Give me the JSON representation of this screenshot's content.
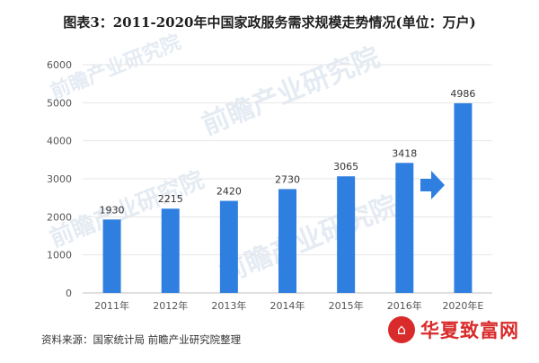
{
  "chart_data": {
    "type": "bar",
    "title": "图表3：2011-2020年中国家政服务需求规模走势情况(单位：万户)",
    "categories": [
      "2011年",
      "2012年",
      "2013年",
      "2014年",
      "2015年",
      "2016年",
      "2020年E"
    ],
    "values": [
      1930,
      2215,
      2420,
      2730,
      3065,
      3418,
      4986
    ],
    "data_labels": [
      "1930",
      "2215",
      "2420",
      "2730",
      "3065",
      "3418",
      "4986"
    ],
    "ylim": [
      0,
      6000
    ],
    "yticks": [
      "0",
      "1000",
      "2000",
      "3000",
      "4000",
      "5000",
      "6000"
    ],
    "grid": true,
    "bar_color": "#2f7fe0",
    "arrow_color": "#2f7fe0"
  },
  "source": "资料来源：国家统计局 前瞻产业研究院整理",
  "watermark": {
    "text": "前瞻产业研究院"
  },
  "brand": {
    "icon": "home-icon",
    "text": "华夏致富网"
  }
}
